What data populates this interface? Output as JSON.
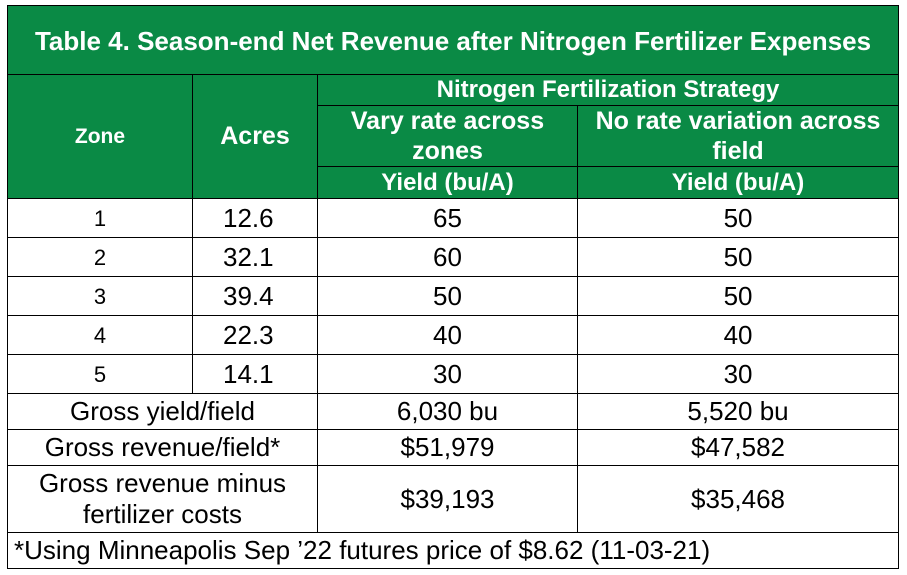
{
  "title": "Table 4. Season-end Net Revenue after Nitrogen Fertilizer Expenses",
  "headers": {
    "zone": "Zone",
    "acres": "Acres",
    "strategy": "Nitrogen Fertilization Strategy",
    "vary": "Vary rate across zones",
    "novary": "No rate variation across field",
    "yield_vary": "Yield (bu/A)",
    "yield_novary": "Yield (bu/A)"
  },
  "rows": [
    {
      "zone": "1",
      "acres": "12.6",
      "vary": "65",
      "novary": "50"
    },
    {
      "zone": "2",
      "acres": "32.1",
      "vary": "60",
      "novary": "50"
    },
    {
      "zone": "3",
      "acres": "39.4",
      "vary": "50",
      "novary": "50"
    },
    {
      "zone": "4",
      "acres": "22.3",
      "vary": "40",
      "novary": "40"
    },
    {
      "zone": "5",
      "acres": "14.1",
      "vary": "30",
      "novary": "30"
    }
  ],
  "summary": [
    {
      "label": "Gross yield/field",
      "vary": "6,030 bu",
      "novary": "5,520 bu"
    },
    {
      "label": "Gross revenue/field*",
      "vary": "$51,979",
      "novary": "$47,582"
    },
    {
      "label": "Gross revenue minus fertilizer costs",
      "vary": "$39,193",
      "novary": "$35,468"
    }
  ],
  "footnote": "*Using Minneapolis Sep ’22 futures price of $8.62 (11-03-21)",
  "colors": {
    "header_green": "#0a8a45",
    "header_text": "#ffffff",
    "border": "#000000"
  }
}
